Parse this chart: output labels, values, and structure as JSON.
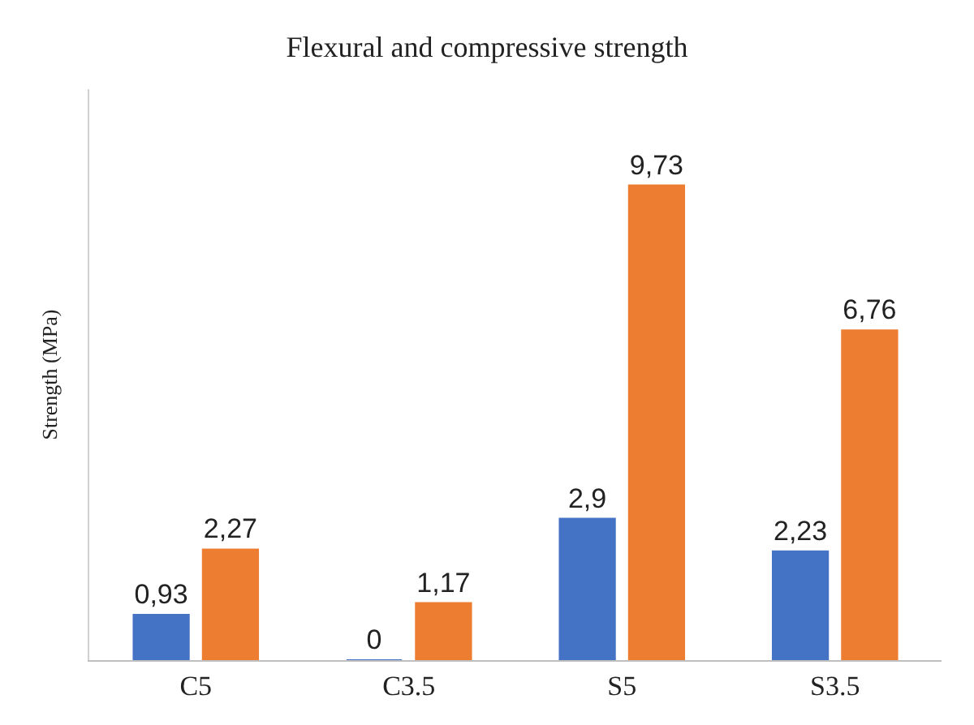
{
  "chart_data": {
    "type": "bar",
    "title": "Flexural and compressive strength",
    "ylabel": "Strength (MPa)",
    "categories": [
      "C5",
      "C3.5",
      "S5",
      "S3.5"
    ],
    "series": [
      {
        "color": "#4472c4",
        "values": [
          0.93,
          0,
          2.9,
          2.23
        ],
        "value_labels": [
          "0,93",
          "0",
          "2,9",
          "2,23"
        ]
      },
      {
        "color": "#ed7d31",
        "values": [
          2.27,
          1.17,
          9.73,
          6.76
        ],
        "value_labels": [
          "2,27",
          "1,17",
          "9,73",
          "6,76"
        ]
      }
    ],
    "ylim": [
      0,
      11.7
    ],
    "tick_labels": "x"
  }
}
